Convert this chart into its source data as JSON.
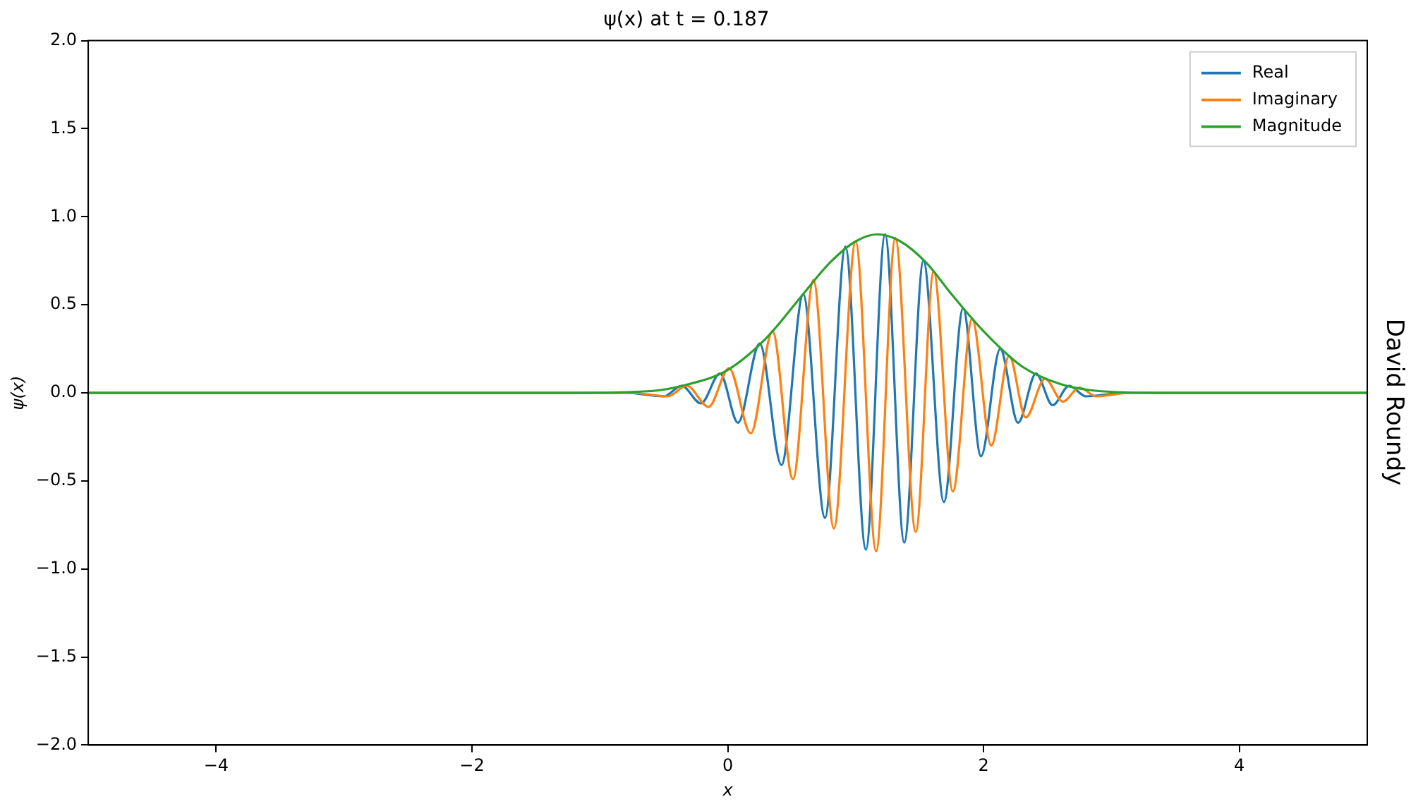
{
  "chart_data": {
    "type": "line",
    "title": "ψ(x) at t = 0.187",
    "xlabel": "x",
    "ylabel": "ψ(x)",
    "annotations": [
      "David Roundy"
    ],
    "xlim": [
      -5,
      5
    ],
    "ylim": [
      -2,
      2
    ],
    "xticks": [
      {
        "value": -4,
        "label": "−4"
      },
      {
        "value": -2,
        "label": "−2"
      },
      {
        "value": 0,
        "label": "0"
      },
      {
        "value": 2,
        "label": "2"
      },
      {
        "value": 4,
        "label": "4"
      }
    ],
    "yticks": [
      {
        "value": -2,
        "label": "−2.0"
      },
      {
        "value": -1.5,
        "label": "−1.5"
      },
      {
        "value": -1,
        "label": "−1.0"
      },
      {
        "value": -0.5,
        "label": "−0.5"
      },
      {
        "value": 0,
        "label": "0.0"
      },
      {
        "value": 0.5,
        "label": "0.5"
      },
      {
        "value": 1,
        "label": "1.0"
      },
      {
        "value": 1.5,
        "label": "1.5"
      },
      {
        "value": 2,
        "label": "2.0"
      }
    ],
    "grid": false,
    "legend": "top right",
    "marker": "none",
    "line_style": "solid",
    "series": [
      {
        "name": "Real",
        "color": "#1f77b4",
        "x": [
          -5,
          -0.8,
          -0.5,
          -0.36,
          -0.21,
          -0.06,
          0.08,
          0.25,
          0.42,
          0.59,
          0.76,
          0.92,
          1.08,
          1.23,
          1.38,
          1.53,
          1.69,
          1.84,
          1.98,
          2.13,
          2.27,
          2.41,
          2.54,
          2.67,
          2.8,
          3.1,
          5
        ],
        "values": [
          0,
          0,
          -0.02,
          0.04,
          -0.06,
          0.11,
          -0.17,
          0.28,
          -0.41,
          0.56,
          -0.71,
          0.83,
          -0.89,
          0.9,
          -0.85,
          0.75,
          -0.62,
          0.48,
          -0.36,
          0.25,
          -0.17,
          0.11,
          -0.07,
          0.04,
          -0.02,
          0,
          0
        ]
      },
      {
        "name": "Imaginary",
        "color": "#ff7f0e",
        "x": [
          -5,
          -0.75,
          -0.47,
          -0.32,
          -0.15,
          0.01,
          0.18,
          0.35,
          0.51,
          0.67,
          0.83,
          1.0,
          1.16,
          1.31,
          1.47,
          1.61,
          1.76,
          1.91,
          2.06,
          2.2,
          2.33,
          2.48,
          2.62,
          2.75,
          2.88,
          3.15,
          5
        ],
        "values": [
          0,
          0,
          -0.02,
          0.04,
          -0.08,
          0.14,
          -0.23,
          0.35,
          -0.49,
          0.64,
          -0.77,
          0.86,
          -0.9,
          0.88,
          -0.79,
          0.69,
          -0.56,
          0.42,
          -0.3,
          0.21,
          -0.14,
          0.08,
          -0.05,
          0.03,
          -0.02,
          0,
          0
        ]
      },
      {
        "name": "Magnitude",
        "color": "#2ca02c",
        "x": [
          -5,
          -1.2,
          -0.6,
          -0.3,
          0,
          0.3,
          0.6,
          0.8,
          1.0,
          1.17,
          1.35,
          1.55,
          1.75,
          2.0,
          2.3,
          2.6,
          2.9,
          3.4,
          5
        ],
        "values": [
          0,
          0,
          0.01,
          0.05,
          0.13,
          0.31,
          0.57,
          0.74,
          0.86,
          0.9,
          0.86,
          0.74,
          0.56,
          0.35,
          0.15,
          0.05,
          0.01,
          0,
          0
        ]
      }
    ]
  }
}
